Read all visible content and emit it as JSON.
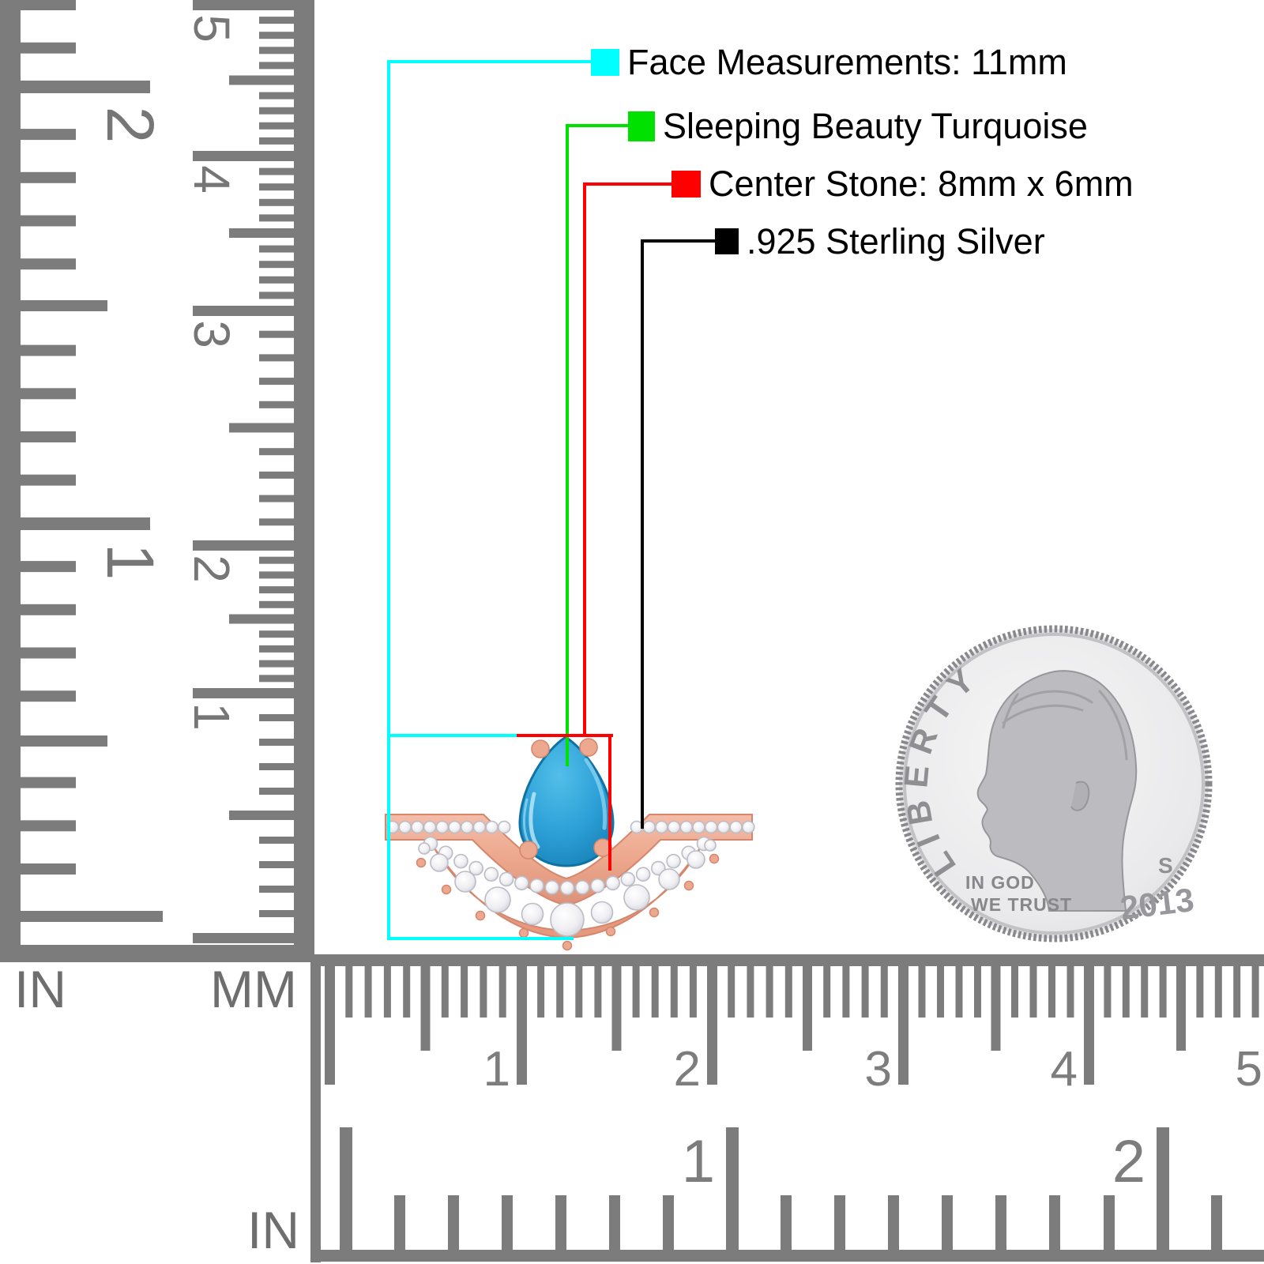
{
  "annotations": {
    "items": [
      {
        "id": "face-measurements",
        "color": "#00ffff",
        "label": "Face Measurements: 11mm"
      },
      {
        "id": "stone-type",
        "color": "#00e100",
        "label": "Sleeping Beauty Turquoise"
      },
      {
        "id": "center-stone",
        "color": "#ff0000",
        "label": "Center Stone: 8mm x 6mm"
      },
      {
        "id": "metal",
        "color": "#000000",
        "label": ".925 Sterling Silver"
      }
    ]
  },
  "left_ruler": {
    "in_label": "IN",
    "mm_label": "MM",
    "inch_numbers": [
      "2",
      "1"
    ],
    "cm_numbers": [
      "5",
      "4",
      "3",
      "2",
      "1"
    ]
  },
  "bottom_ruler": {
    "in_label": "IN",
    "cm_numbers": [
      "1",
      "2",
      "3",
      "4",
      "5"
    ],
    "inch_numbers": [
      "1",
      "2"
    ]
  },
  "coin": {
    "liberty": "LIBERTY",
    "motto_line1": "IN GOD",
    "motto_line2": "WE TRUST",
    "mint_mark": "S",
    "year": "2013"
  },
  "ring": {
    "band_color": "#eda98f",
    "band_edge_color": "#d5866c",
    "band_highlight": "#f7cfc0",
    "stone_color": "#2196cf",
    "stone_light": "#52bfe9",
    "stone_edge_color": "#0e73a4",
    "diamond_color": "#f5f5f7",
    "diamond_edge_color": "#bcbcc6",
    "ruler_gray": "#7c7c7c",
    "ruler_number_gray": "#767676"
  }
}
